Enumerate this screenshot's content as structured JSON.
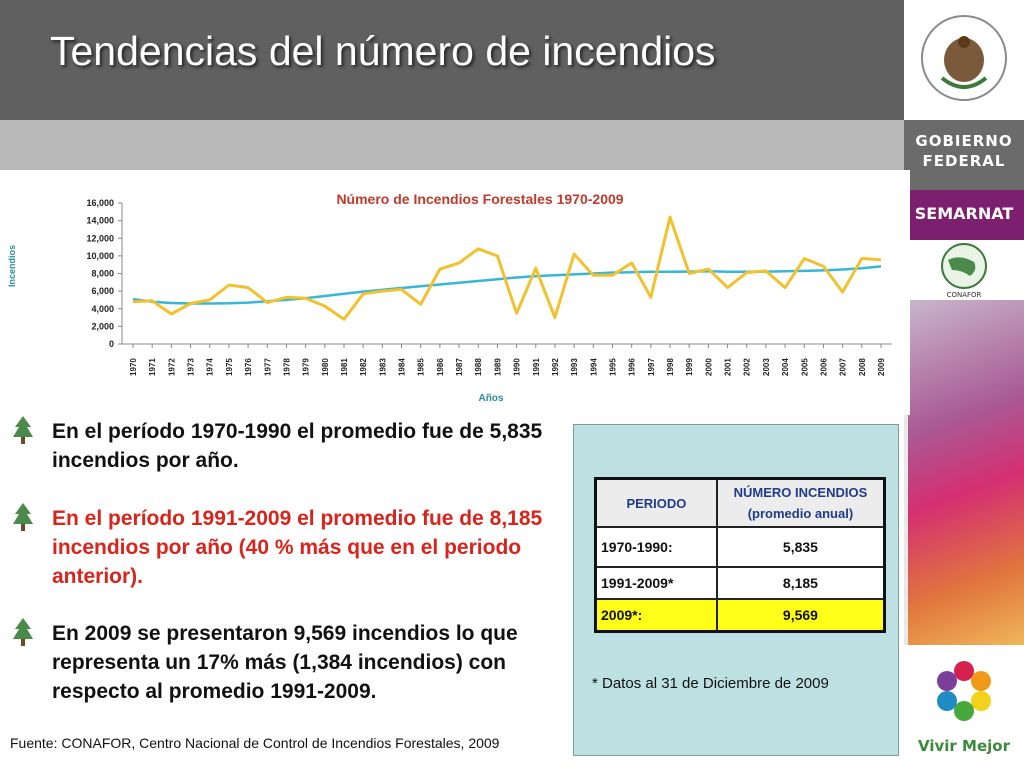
{
  "title": "Tendencias del número de incendios",
  "sidebar": {
    "gobierno_1": "GOBIERNO",
    "gobierno_2": "FEDERAL",
    "semarnat": "SEMARNAT",
    "conafor": "CONAFOR",
    "vivir_mejor": "Vivir Mejor"
  },
  "chart_data": {
    "type": "line",
    "title": "Número de Incendios Forestales 1970-2009",
    "xlabel": "Años",
    "ylabel": "Incendios",
    "ylim": [
      0,
      16000
    ],
    "y_ticks": [
      "0",
      "2,000",
      "4,000",
      "6,000",
      "8,000",
      "10,000",
      "12,000",
      "14,000",
      "16,000"
    ],
    "categories": [
      "1970",
      "1971",
      "1972",
      "1973",
      "1974",
      "1975",
      "1976",
      "1977",
      "1978",
      "1979",
      "1980",
      "1981",
      "1982",
      "1983",
      "1984",
      "1985",
      "1986",
      "1987",
      "1988",
      "1989",
      "1990",
      "1991",
      "1992",
      "1993",
      "1994",
      "1995",
      "1996",
      "1997",
      "1998",
      "1999",
      "2000",
      "2001",
      "2002",
      "2003",
      "2004",
      "2005",
      "2006",
      "2007",
      "2008",
      "2009"
    ],
    "series": [
      {
        "color": "#f2c12e",
        "values": [
          4800,
          4900,
          3400,
          4600,
          5000,
          6700,
          6400,
          4700,
          5300,
          5200,
          4300,
          2800,
          5700,
          6000,
          6200,
          4500,
          8500,
          9200,
          10800,
          10000,
          3500,
          8600,
          3000,
          10200,
          7800,
          7800,
          9200,
          5300,
          14400,
          8000,
          8500,
          6400,
          8100,
          8300,
          6400,
          9700,
          8800,
          5900,
          9700,
          9569
        ]
      },
      {
        "color": "#37b6d6",
        "values": [
          5100,
          4800,
          4650,
          4600,
          4600,
          4620,
          4700,
          4850,
          5000,
          5200,
          5450,
          5700,
          5950,
          6150,
          6350,
          6550,
          6750,
          6950,
          7150,
          7350,
          7550,
          7700,
          7800,
          7900,
          8000,
          8100,
          8150,
          8200,
          8200,
          8220,
          8250,
          8200,
          8200,
          8220,
          8250,
          8300,
          8350,
          8450,
          8600,
          8800
        ]
      }
    ]
  },
  "bullets": [
    {
      "text": "En el período 1970-1990 el promedio fue de 5,835 incendios por año."
    },
    {
      "text": "En el período 1991-2009 el promedio fue de 8,185 incendios por año (40 % más que en el periodo anterior)."
    },
    {
      "text": "En 2009 se presentaron 9,569 incendios lo que representa un 17% más (1,384 incendios) con respecto al promedio 1991-2009."
    }
  ],
  "table": {
    "header_periodo": "PERIODO",
    "header_numero_1": "NÚMERO INCENDIOS",
    "header_numero_2": "(promedio anual)",
    "rows": [
      {
        "periodo": "1970-1990:",
        "valor": "5,835"
      },
      {
        "periodo": "1991-2009*",
        "valor": "8,185"
      },
      {
        "periodo": "2009*:",
        "valor": "9,569"
      }
    ]
  },
  "note": "* Datos al 31 de Diciembre de 2009",
  "source": "Fuente: CONAFOR, Centro Nacional de Control de Incendios Forestales, 2009"
}
